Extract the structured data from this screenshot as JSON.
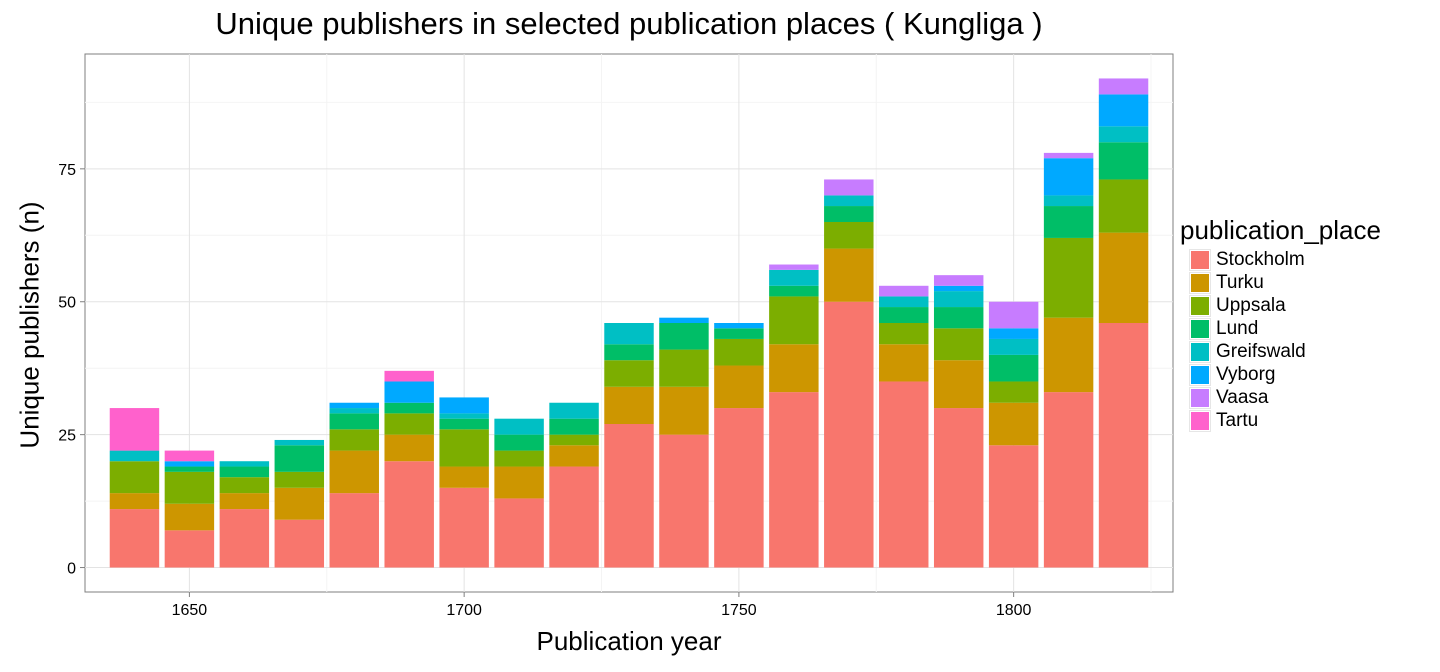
{
  "chart_data": {
    "type": "bar",
    "stacked": true,
    "title": "Unique publishers in selected publication places ( Kungliga )",
    "xlabel": "Publication year",
    "ylabel": "Unique publishers (n)",
    "xlim": [
      1631,
      1829
    ],
    "ylim": [
      -4.6,
      96.6
    ],
    "x_ticks": [
      1650,
      1700,
      1750,
      1800
    ],
    "y_ticks": [
      0,
      25,
      50,
      75
    ],
    "bar_width": 9,
    "grid": true,
    "legend_title": "publication_place",
    "legend_position": "right",
    "x": [
      1640,
      1650,
      1660,
      1670,
      1680,
      1690,
      1700,
      1710,
      1720,
      1730,
      1740,
      1750,
      1760,
      1770,
      1780,
      1790,
      1800,
      1810,
      1820
    ],
    "series": [
      {
        "name": "Stockholm",
        "color": "#F8766D",
        "values": [
          11,
          7,
          11,
          9,
          14,
          20,
          15,
          13,
          19,
          27,
          25,
          30,
          33,
          50,
          35,
          30,
          23,
          33,
          46
        ]
      },
      {
        "name": "Turku",
        "color": "#CD9600",
        "values": [
          3,
          5,
          3,
          6,
          8,
          5,
          4,
          6,
          4,
          7,
          9,
          8,
          9,
          10,
          7,
          9,
          8,
          14,
          17
        ]
      },
      {
        "name": "Uppsala",
        "color": "#7CAE00",
        "values": [
          6,
          6,
          3,
          3,
          4,
          4,
          7,
          3,
          2,
          5,
          7,
          5,
          9,
          5,
          4,
          6,
          4,
          15,
          10
        ]
      },
      {
        "name": "Lund",
        "color": "#00BE67",
        "values": [
          0,
          1,
          2,
          5,
          3,
          2,
          2,
          3,
          3,
          3,
          5,
          2,
          2,
          3,
          3,
          4,
          5,
          6,
          7
        ]
      },
      {
        "name": "Greifswald",
        "color": "#00BFC4",
        "values": [
          2,
          0,
          1,
          1,
          1,
          0,
          1,
          3,
          3,
          4,
          0,
          0,
          3,
          2,
          2,
          3,
          3,
          2,
          3
        ]
      },
      {
        "name": "Vyborg",
        "color": "#00A9FF",
        "values": [
          0,
          1,
          0,
          0,
          1,
          4,
          3,
          0,
          0,
          0,
          1,
          1,
          0,
          0,
          0,
          1,
          2,
          7,
          6
        ]
      },
      {
        "name": "Vaasa",
        "color": "#C77CFF",
        "values": [
          0,
          0,
          0,
          0,
          0,
          0,
          0,
          0,
          0,
          0,
          0,
          0,
          1,
          3,
          2,
          2,
          5,
          1,
          3
        ]
      },
      {
        "name": "Tartu",
        "color": "#FF61CC",
        "values": [
          8,
          2,
          0,
          0,
          0,
          2,
          0,
          0,
          0,
          0,
          0,
          0,
          0,
          0,
          0,
          0,
          0,
          0,
          0
        ]
      }
    ]
  }
}
